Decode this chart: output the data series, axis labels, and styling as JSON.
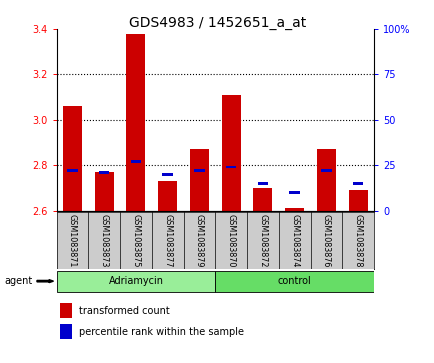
{
  "title": "GDS4983 / 1452651_a_at",
  "samples": [
    "GSM1083871",
    "GSM1083873",
    "GSM1083875",
    "GSM1083877",
    "GSM1083879",
    "GSM1083870",
    "GSM1083872",
    "GSM1083874",
    "GSM1083876",
    "GSM1083878"
  ],
  "groups": [
    "Adriamycin",
    "Adriamycin",
    "Adriamycin",
    "Adriamycin",
    "Adriamycin",
    "control",
    "control",
    "control",
    "control",
    "control"
  ],
  "transformed_count": [
    3.06,
    2.77,
    3.38,
    2.73,
    2.87,
    3.11,
    2.7,
    2.61,
    2.87,
    2.69
  ],
  "percentile_rank": [
    22,
    21,
    27,
    20,
    22,
    24,
    15,
    10,
    22,
    15
  ],
  "ylim_left": [
    2.6,
    3.4
  ],
  "ylim_right": [
    0,
    100
  ],
  "yticks_left": [
    2.6,
    2.8,
    3.0,
    3.2,
    3.4
  ],
  "yticks_right": [
    0,
    25,
    50,
    75,
    100
  ],
  "bar_color": "#cc0000",
  "dot_color": "#0000cc",
  "background_color": "#ffffff",
  "xtick_bg_color": "#cccccc",
  "adriamycin_color": "#99ee99",
  "control_color": "#66dd66",
  "agent_label": "agent",
  "legend_tc": "transformed count",
  "legend_pr": "percentile rank within the sample",
  "title_fontsize": 10,
  "tick_fontsize": 7,
  "label_fontsize": 7,
  "grid_ticks": [
    2.8,
    3.0,
    3.2
  ]
}
